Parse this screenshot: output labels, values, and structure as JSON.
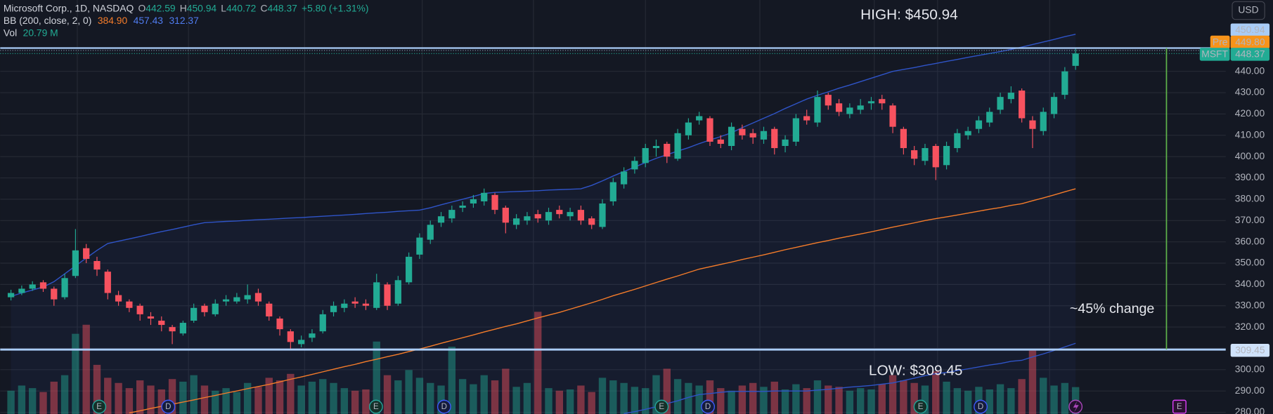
{
  "chart_data": {
    "type": "candlestick",
    "legend": {
      "symbol": "Microsoft Corp., 1D, NASDAQ",
      "ohlc": [
        {
          "label": "O",
          "value": "442.59"
        },
        {
          "label": "H",
          "value": "450.94"
        },
        {
          "label": "L",
          "value": "440.72"
        },
        {
          "label": "C",
          "value": "448.37"
        }
      ],
      "change": "+5.80 (+1.31%)",
      "bb_name": "BB (200, close, 2, 0)",
      "bb_values": [
        "384.90",
        "457.43",
        "312.37"
      ],
      "vol_name": "Vol",
      "vol_value": "20.79 M"
    },
    "currency": "USD",
    "up_color": "#22ab94",
    "down_color": "#f7525f",
    "ylim": [
      279.2,
      473.5
    ],
    "yticks": [
      {
        "value": 280,
        "label": "280.00"
      },
      {
        "value": 290,
        "label": "290.00"
      },
      {
        "value": 300,
        "label": "300.00"
      },
      {
        "value": 310,
        "label": "310.00"
      },
      {
        "value": 320,
        "label": "320.00"
      },
      {
        "value": 330,
        "label": "330.00"
      },
      {
        "value": 340,
        "label": "340.00"
      },
      {
        "value": 350,
        "label": "350.00"
      },
      {
        "value": 360,
        "label": "360.00"
      },
      {
        "value": 370,
        "label": "370.00"
      },
      {
        "value": 380,
        "label": "380.00"
      },
      {
        "value": 390,
        "label": "390.00"
      },
      {
        "value": 400,
        "label": "400.00"
      },
      {
        "value": 410,
        "label": "410.00"
      },
      {
        "value": 420,
        "label": "420.00"
      },
      {
        "value": 430,
        "label": "430.00"
      },
      {
        "value": 440,
        "label": "440.00"
      }
    ],
    "grid": true,
    "volume_ylim": [
      0,
      320
    ],
    "open": [
      334,
      336,
      338,
      341,
      338,
      334,
      344,
      357,
      351,
      346,
      335,
      332,
      330,
      325,
      323,
      320,
      317,
      323,
      330,
      326,
      332,
      332,
      333,
      336,
      331,
      324,
      318,
      312,
      315,
      318,
      327,
      329,
      332,
      331,
      329,
      340,
      331,
      341,
      354,
      361,
      369,
      371,
      376,
      378,
      379,
      382,
      376,
      368,
      370,
      373,
      370,
      375,
      372,
      375,
      371,
      367,
      379,
      387,
      394,
      397,
      404,
      406,
      399,
      410,
      417,
      418,
      408,
      405,
      413,
      411,
      408,
      413,
      405,
      407,
      419,
      416,
      429,
      425,
      420,
      422,
      425,
      427,
      424,
      413,
      403,
      398,
      405,
      396,
      404,
      410,
      413,
      416,
      422,
      427,
      431,
      417,
      412,
      420,
      429,
      442.59
    ],
    "high": [
      337.5,
      339.5,
      341.5,
      342,
      339,
      345,
      366,
      359,
      353,
      347,
      337,
      333,
      331,
      327,
      325,
      321,
      323,
      331,
      331,
      333,
      335,
      336,
      340,
      338,
      332,
      325,
      319,
      316,
      319,
      328,
      332,
      333,
      334,
      333,
      345,
      341,
      344,
      355,
      364,
      370,
      374,
      377,
      379,
      382,
      385,
      383,
      377,
      373,
      374,
      375,
      376,
      377,
      376,
      377,
      372,
      380,
      390,
      395,
      400,
      406,
      408,
      407,
      413,
      418,
      421,
      419,
      410,
      416,
      415,
      413,
      414,
      414,
      410,
      420,
      422,
      431,
      430,
      427,
      425,
      427,
      428,
      429,
      425,
      414,
      405,
      406,
      406,
      407,
      413,
      414,
      419,
      423,
      430,
      433,
      432,
      419,
      423,
      430,
      442,
      450.94
    ],
    "low": [
      332.5,
      335,
      337,
      336.5,
      330,
      333,
      343,
      350,
      344,
      333,
      330,
      327,
      323,
      321,
      318,
      312,
      316,
      322,
      325,
      325,
      330,
      331,
      331,
      330,
      323,
      316,
      309.45,
      310.5,
      313,
      317,
      325,
      327,
      329,
      328,
      328,
      328,
      330,
      340,
      352,
      359,
      367,
      369,
      374,
      376,
      377,
      373,
      364,
      366,
      368,
      369,
      368,
      371,
      370,
      368,
      366,
      366,
      377,
      385,
      392,
      395,
      400,
      397,
      398,
      408,
      415,
      405,
      404,
      403,
      408,
      406,
      406,
      401,
      402,
      405,
      415,
      414,
      422,
      419,
      418,
      420,
      422,
      422,
      411,
      401,
      396,
      396,
      389,
      394,
      402,
      408,
      411,
      414,
      420,
      425,
      416,
      404,
      410,
      418,
      427,
      440.72
    ],
    "close": [
      336,
      338,
      340,
      338,
      333,
      343,
      356,
      352,
      347,
      336,
      332,
      329,
      326,
      324,
      321,
      318,
      322,
      329,
      327,
      331,
      333,
      334,
      335,
      332,
      325,
      319,
      313,
      314,
      317,
      326,
      330,
      331,
      331,
      330,
      341,
      330,
      342,
      353,
      362,
      368,
      372,
      375,
      377,
      380,
      383,
      375,
      369,
      371,
      372,
      371,
      374,
      373,
      374,
      370,
      368,
      378,
      388,
      393,
      398,
      404,
      405,
      400,
      411,
      416,
      419,
      407,
      406,
      414,
      410,
      409,
      412,
      404,
      408,
      418,
      417,
      428,
      424,
      421,
      423,
      424,
      426,
      425,
      414,
      404,
      399,
      404,
      395,
      405,
      411,
      412,
      417,
      421,
      428,
      430,
      418,
      413,
      421,
      428,
      440,
      448.37
    ],
    "volume": [
      18,
      22,
      20,
      17,
      25,
      30,
      62,
      69,
      38,
      28,
      24,
      20,
      26,
      22,
      19,
      27,
      25,
      30,
      22,
      18,
      20,
      17,
      24,
      21,
      28,
      26,
      31,
      22,
      25,
      27,
      24,
      20,
      18,
      19,
      56,
      30,
      26,
      34,
      28,
      24,
      22,
      52,
      27,
      23,
      30,
      26,
      35,
      21,
      24,
      79,
      20,
      18,
      19,
      22,
      17,
      28,
      26,
      24,
      21,
      20,
      30,
      35,
      27,
      24,
      22,
      26,
      20,
      18,
      22,
      24,
      21,
      25,
      19,
      23,
      20,
      26,
      22,
      21,
      18,
      20,
      19,
      23,
      30,
      26,
      24,
      22,
      33,
      25,
      20,
      18,
      21,
      19,
      23,
      20,
      27,
      49,
      28,
      22,
      24,
      20.79
    ],
    "bollinger": {
      "basis": {
        "color": "#f57c2a",
        "values": [
          null,
          null,
          null,
          null,
          null,
          null,
          null,
          null,
          null,
          null,
          null,
          279.7,
          280.7,
          281.8,
          282.8,
          283.8,
          284.8,
          285.8,
          286.9,
          287.9,
          289,
          290,
          291.1,
          292.1,
          293.1,
          294.3,
          295.5,
          296.6,
          297.8,
          299,
          300.2,
          301.4,
          302.5,
          303.8,
          304.9,
          306.1,
          307.2,
          308.5,
          309.7,
          311,
          312.4,
          313.7,
          315,
          316.3,
          317.7,
          319,
          320.3,
          321.5,
          322.9,
          324.3,
          325.6,
          326.9,
          328.4,
          329.9,
          331.4,
          333,
          334.7,
          336.2,
          337.7,
          339.3,
          340.9,
          342.5,
          344,
          345.6,
          347.2,
          348.3,
          349.4,
          350.5,
          351.7,
          352.8,
          353.9,
          355.1,
          356.3,
          357.4,
          358.5,
          359.6,
          360.6,
          361.7,
          362.7,
          363.7,
          364.7,
          365.8,
          366.9,
          367.9,
          368.9,
          370,
          370.9,
          371.7,
          372.6,
          373.5,
          374.4,
          375.3,
          376.1,
          377.1,
          377.9,
          379.3,
          380.6,
          382,
          383.5,
          384.9
        ]
      },
      "upper": {
        "color": "#2f54c8",
        "values": [
          334.4,
          336,
          337.4,
          338.8,
          341.3,
          345,
          348.7,
          352.4,
          356,
          359.2,
          360.3,
          361.4,
          362.5,
          363.7,
          364.8,
          365.8,
          366.9,
          368,
          369,
          369.3,
          369.6,
          369.8,
          370.1,
          370.4,
          370.6,
          370.9,
          371.2,
          371.4,
          371.7,
          372,
          372.3,
          372.6,
          372.9,
          373.3,
          373.6,
          373.9,
          374.3,
          374.6,
          374.9,
          376,
          377.4,
          378.7,
          380,
          381.3,
          382.7,
          383.2,
          383.4,
          383.6,
          383.8,
          384,
          384.3,
          384.5,
          384.7,
          384.9,
          386.5,
          388.6,
          390.9,
          393,
          395.1,
          397.2,
          399.2,
          400.9,
          402.6,
          404.2,
          406.1,
          407.8,
          409.4,
          411.2,
          413.6,
          415.8,
          418,
          420.2,
          422.6,
          424.8,
          427,
          428.8,
          430.4,
          432.1,
          433.6,
          435.2,
          436.8,
          438.4,
          440,
          440.9,
          441.8,
          442.8,
          443.7,
          444.7,
          445.6,
          446.6,
          447.5,
          448.4,
          449.3,
          450.3,
          451.4,
          452.6,
          453.8,
          455,
          456.3,
          457.43
        ]
      },
      "lower": {
        "color": "#2f54c8",
        "values": [
          null,
          null,
          null,
          null,
          null,
          null,
          null,
          null,
          null,
          null,
          null,
          null,
          null,
          null,
          null,
          null,
          null,
          null,
          null,
          null,
          null,
          null,
          null,
          null,
          null,
          null,
          null,
          null,
          null,
          null,
          null,
          null,
          null,
          null,
          null,
          null,
          null,
          null,
          null,
          null,
          null,
          null,
          null,
          null,
          null,
          null,
          null,
          null,
          null,
          null,
          null,
          null,
          null,
          null,
          null,
          null,
          null,
          279.4,
          280.3,
          281.4,
          282.6,
          284.1,
          285.4,
          287,
          288.3,
          288.8,
          289.4,
          289.8,
          289.8,
          289.8,
          289.8,
          290,
          290,
          290,
          290,
          290.4,
          290.8,
          291.3,
          291.8,
          292.2,
          292.6,
          293.2,
          293.8,
          294.9,
          296,
          297.2,
          298.1,
          298.7,
          299.6,
          300.4,
          301.3,
          302.2,
          302.9,
          303.9,
          304.4,
          306,
          307.4,
          309,
          310.7,
          312.37
        ]
      }
    },
    "high_level": {
      "value": 450.94,
      "annotation": "HIGH: $450.94"
    },
    "low_level": {
      "value": 309.45,
      "annotation": "LOW: $309.45"
    },
    "change_annotation": "~45% change",
    "pre": {
      "label": "Pre",
      "value": 449.8,
      "value_label": "449.80"
    },
    "last": {
      "label": "MSFT",
      "value": 448.37
    },
    "events": [
      "E",
      "D",
      "E",
      "D",
      "E",
      "D",
      "E",
      "D",
      "E"
    ]
  }
}
